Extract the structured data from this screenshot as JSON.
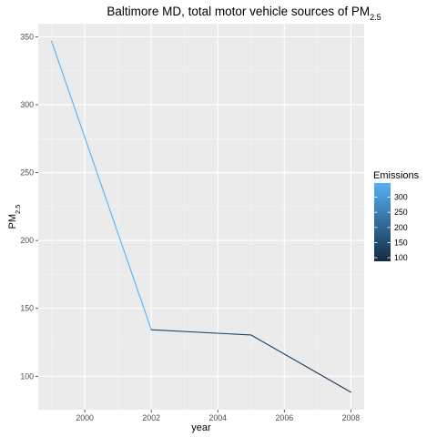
{
  "chart_data": {
    "type": "line",
    "title": "Baltimore MD, total motor vehicle sources of PM",
    "title_subscript": "2.5",
    "xlabel": "year",
    "ylabel": "PM",
    "ylabel_subscript": "2.5",
    "x": [
      1999,
      2002,
      2005,
      2008
    ],
    "series": [
      {
        "values": [
          346.8,
          134.3,
          130.4,
          88.3
        ]
      }
    ],
    "xlim": [
      1998.6,
      2008.4
    ],
    "ylim": [
      75.4,
      359.7
    ],
    "x_ticks": [
      2000,
      2002,
      2004,
      2006,
      2008
    ],
    "x_tick_labels": [
      "2000",
      "2002",
      "2004",
      "2006",
      "2008"
    ],
    "y_ticks": [
      100,
      150,
      200,
      250,
      300,
      350
    ],
    "y_tick_labels": [
      "100",
      "150",
      "200",
      "250",
      "300",
      "350"
    ],
    "grid": true,
    "color_legend": {
      "title": "Emissions",
      "labels": [
        "300",
        "250",
        "200",
        "150",
        "100"
      ],
      "values": [
        300,
        250,
        200,
        150,
        100
      ],
      "range": [
        88.3,
        346.8
      ],
      "low_color": "#132b43",
      "high_color": "#56b1f7",
      "placement": "right"
    },
    "colors": {
      "panel": "#ebebeb",
      "grid_major": "#ffffff",
      "grid_minor": "#f5f5f5",
      "tick_text": "#4d4d4d"
    }
  }
}
